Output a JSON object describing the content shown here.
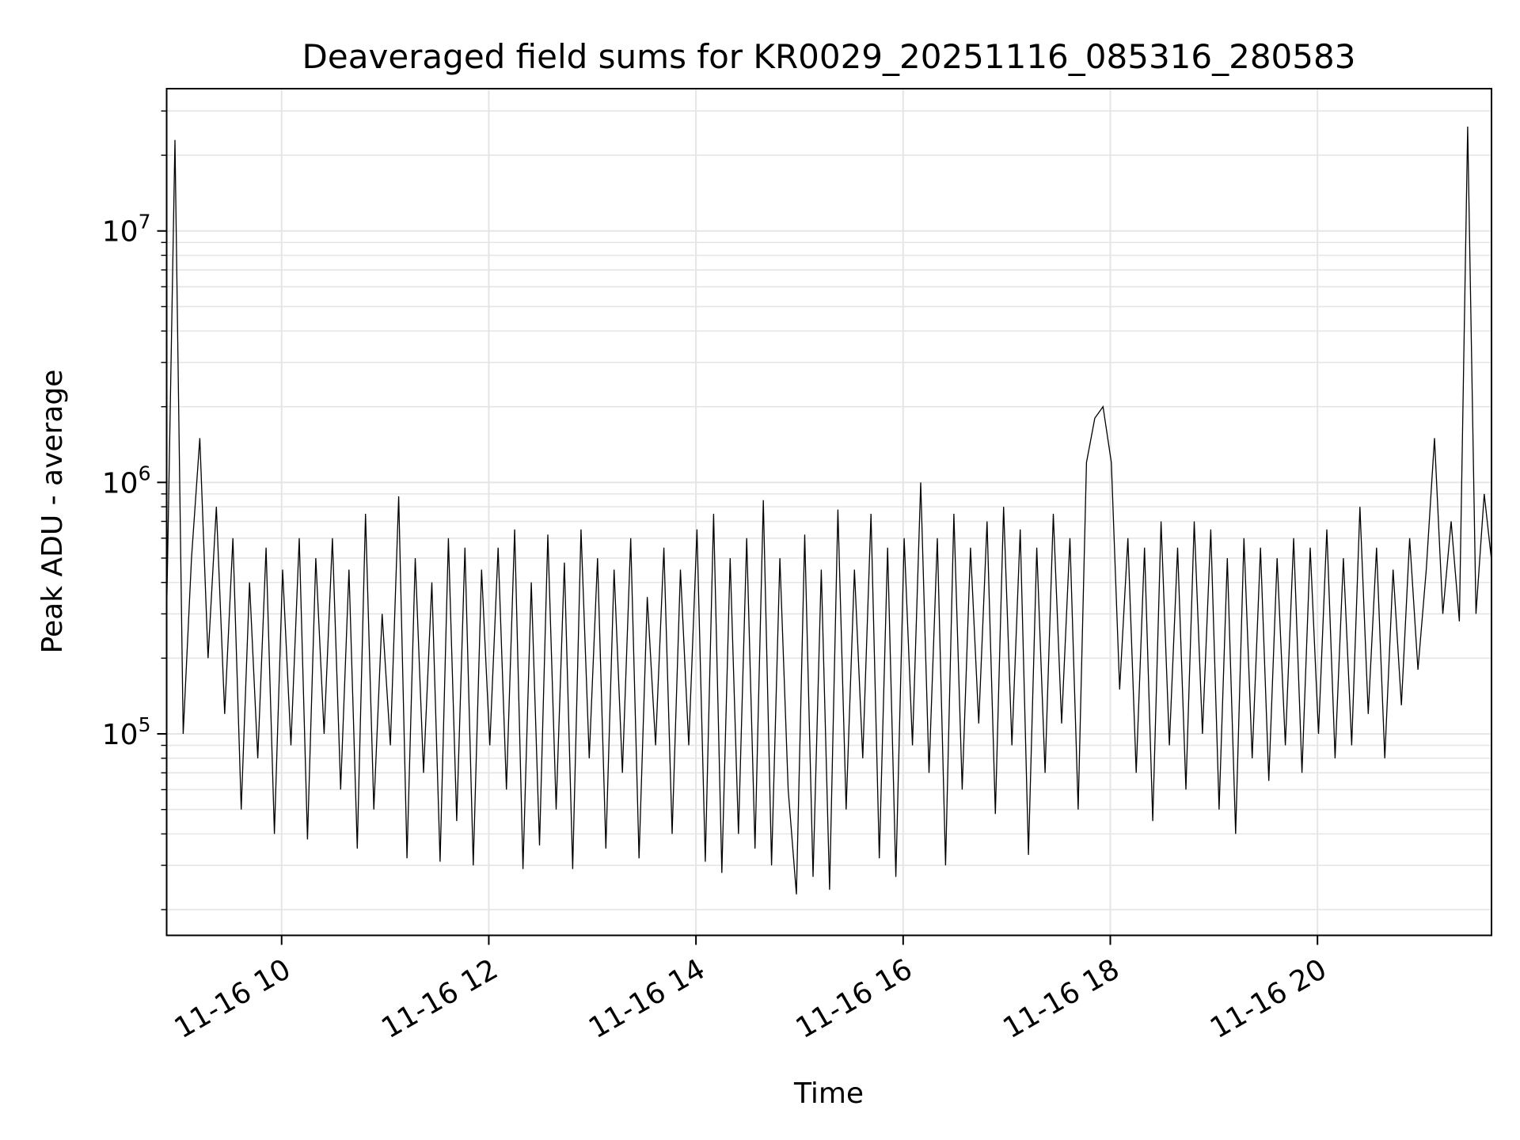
{
  "chart_data": {
    "type": "line",
    "title": "Deaveraged field sums for KR0029_20251116_085316_280583",
    "xlabel": "Time",
    "ylabel": "Peak ADU - average",
    "yscale": "log",
    "ylim": [
      15800,
      36800000
    ],
    "xlim_hours": [
      8.89,
      21.68
    ],
    "grid": true,
    "line_color": "#000000",
    "grid_color": "#e5e5e5",
    "x_ticks": [
      {
        "hour": 10,
        "label": "11-16 10"
      },
      {
        "hour": 12,
        "label": "11-16 12"
      },
      {
        "hour": 14,
        "label": "11-16 14"
      },
      {
        "hour": 16,
        "label": "11-16 16"
      },
      {
        "hour": 18,
        "label": "11-16 18"
      },
      {
        "hour": 20,
        "label": "11-16 20"
      }
    ],
    "y_ticks": [
      {
        "value": 100000,
        "base": "10",
        "exp": "5"
      },
      {
        "value": 1000000,
        "base": "10",
        "exp": "6"
      },
      {
        "value": 10000000,
        "base": "10",
        "exp": "7"
      }
    ],
    "series": [
      {
        "name": "field sums",
        "x_start_hour": 8.89,
        "x_step_hour": 0.08,
        "values": [
          300000.0,
          23000000.0,
          100000.0,
          500000.0,
          1500000.0,
          200000.0,
          800000.0,
          120000.0,
          600000.0,
          50000.0,
          400000.0,
          80000.0,
          550000.0,
          40000.0,
          450000.0,
          90000.0,
          600000.0,
          38000.0,
          500000.0,
          100000.0,
          600000.0,
          60000.0,
          450000.0,
          35000.0,
          750000.0,
          50000.0,
          300000.0,
          90000.0,
          880000.0,
          32000.0,
          500000.0,
          70000.0,
          400000.0,
          31000.0,
          600000.0,
          45000.0,
          550000.0,
          30000.0,
          450000.0,
          90000.0,
          550000.0,
          60000.0,
          650000.0,
          29000.0,
          400000.0,
          36000.0,
          620000.0,
          50000.0,
          480000.0,
          29000.0,
          650000.0,
          80000.0,
          500000.0,
          35000.0,
          450000.0,
          70000.0,
          600000.0,
          32000.0,
          350000.0,
          90000.0,
          550000.0,
          40000.0,
          450000.0,
          90000.0,
          650000.0,
          31000.0,
          750000.0,
          28000.0,
          500000.0,
          40000.0,
          600000.0,
          35000.0,
          850000.0,
          30000.0,
          500000.0,
          60000.0,
          23000.0,
          620000.0,
          27000.0,
          450000.0,
          24000.0,
          780000.0,
          50000.0,
          450000.0,
          80000.0,
          750000.0,
          32000.0,
          550000.0,
          27000.0,
          600000.0,
          90000.0,
          1000000.0,
          70000.0,
          600000.0,
          30000.0,
          750000.0,
          60000.0,
          550000.0,
          110000.0,
          700000.0,
          48000.0,
          800000.0,
          90000.0,
          650000.0,
          33000.0,
          550000.0,
          70000.0,
          750000.0,
          110000.0,
          600000.0,
          50000.0,
          1200000.0,
          1800000.0,
          2000000.0,
          1200000.0,
          150000.0,
          600000.0,
          70000.0,
          550000.0,
          45000.0,
          700000.0,
          90000.0,
          550000.0,
          60000.0,
          700000.0,
          100000.0,
          650000.0,
          50000.0,
          500000.0,
          40000.0,
          600000.0,
          80000.0,
          550000.0,
          65000.0,
          500000.0,
          90000.0,
          600000.0,
          70000.0,
          550000.0,
          100000.0,
          650000.0,
          80000.0,
          500000.0,
          90000.0,
          800000.0,
          120000.0,
          550000.0,
          80000.0,
          450000.0,
          130000.0,
          600000.0,
          180000.0,
          450000.0,
          1500000.0,
          300000.0,
          700000.0,
          280000.0,
          26000000.0,
          300000.0,
          900000.0,
          450000.0,
          240000.0
        ]
      }
    ]
  }
}
